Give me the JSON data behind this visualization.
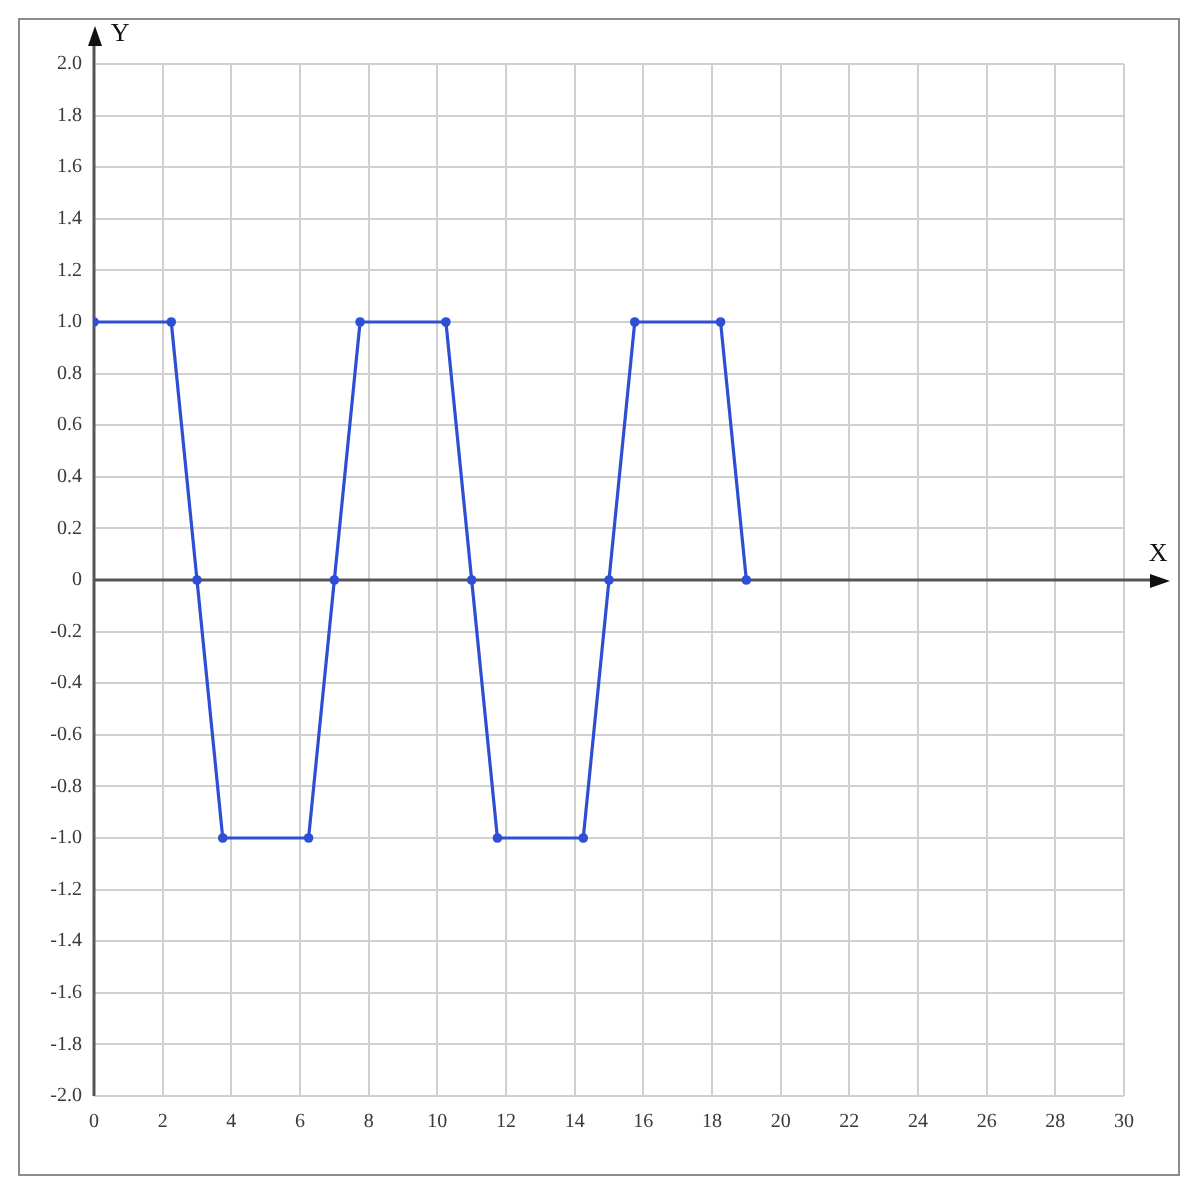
{
  "chart_data": {
    "type": "line",
    "xlabel": "X",
    "ylabel": "Y",
    "x": [
      0,
      2.25,
      3,
      3.75,
      6.25,
      7,
      7.75,
      10.25,
      11,
      11.75,
      14.25,
      15,
      15.75,
      18.25,
      19
    ],
    "series": [
      {
        "color": "#2e4fd4",
        "values": [
          1,
          1,
          0,
          -1,
          -1,
          0,
          1,
          1,
          0,
          -1,
          -1,
          0,
          1,
          1,
          0
        ]
      }
    ],
    "xlim": [
      0,
      30
    ],
    "ylim": [
      -2,
      2
    ],
    "xticks": [
      0,
      2,
      4,
      6,
      8,
      10,
      12,
      14,
      16,
      18,
      20,
      22,
      24,
      26,
      28,
      30
    ],
    "yticks": [
      {
        "value": -2,
        "label": "-2.0"
      },
      -1.8,
      -1.6,
      -1.4,
      -1.2,
      {
        "value": -1,
        "label": "-1.0"
      },
      -0.8,
      -0.6,
      -0.4,
      -0.2,
      0,
      0.2,
      0.4,
      0.6,
      0.8,
      {
        "value": 1,
        "label": "1.0"
      },
      1.2,
      1.4,
      1.6,
      1.8,
      {
        "value": 2,
        "label": "2.0"
      }
    ],
    "grid": true,
    "marker": "circle",
    "line_style": "solid"
  }
}
